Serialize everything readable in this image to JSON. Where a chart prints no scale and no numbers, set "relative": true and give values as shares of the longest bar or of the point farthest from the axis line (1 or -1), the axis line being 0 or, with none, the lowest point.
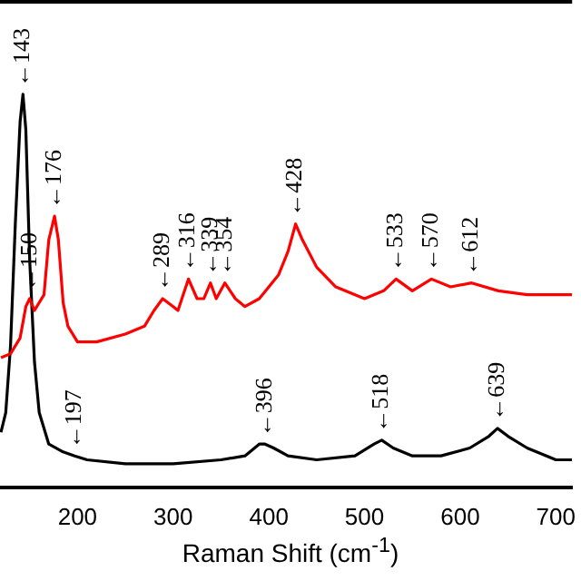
{
  "chart_data": {
    "type": "line",
    "xlabel": "Raman Shift (cm$^{-1}$)",
    "relative": true,
    "xlim": [
      119,
      717
    ],
    "xticks": [
      200,
      300,
      400,
      500,
      600,
      700
    ],
    "grid": false,
    "legend": false,
    "marker": "none",
    "line_style": "solid",
    "series": [
      {
        "color": "#ff0000",
        "x": [
          120,
          130,
          140,
          146,
          150,
          155,
          165,
          170,
          176,
          180,
          185,
          190,
          200,
          220,
          250,
          270,
          280,
          289,
          300,
          305,
          316,
          325,
          332,
          339,
          345,
          354,
          365,
          375,
          390,
          410,
          420,
          428,
          435,
          450,
          470,
          500,
          520,
          533,
          550,
          570,
          590,
          612,
          640,
          670,
          717
        ],
        "values": [
          0.33,
          0.34,
          0.38,
          0.46,
          0.48,
          0.45,
          0.49,
          0.63,
          0.69,
          0.63,
          0.47,
          0.41,
          0.37,
          0.37,
          0.39,
          0.41,
          0.45,
          0.48,
          0.46,
          0.45,
          0.53,
          0.48,
          0.48,
          0.52,
          0.48,
          0.52,
          0.48,
          0.46,
          0.48,
          0.54,
          0.6,
          0.67,
          0.63,
          0.56,
          0.51,
          0.48,
          0.5,
          0.53,
          0.5,
          0.53,
          0.51,
          0.52,
          0.5,
          0.49,
          0.49
        ]
      },
      {
        "color": "#000000",
        "x": [
          120,
          125,
          130,
          135,
          140,
          143,
          146,
          150,
          155,
          160,
          170,
          185,
          197,
          210,
          250,
          300,
          350,
          375,
          390,
          396,
          405,
          420,
          450,
          490,
          510,
          518,
          530,
          550,
          580,
          610,
          630,
          639,
          650,
          670,
          700,
          717
        ],
        "values": [
          0.14,
          0.19,
          0.36,
          0.67,
          0.93,
          1,
          0.91,
          0.58,
          0.32,
          0.19,
          0.11,
          0.09,
          0.08,
          0.07,
          0.06,
          0.06,
          0.07,
          0.08,
          0.11,
          0.11,
          0.1,
          0.08,
          0.07,
          0.08,
          0.11,
          0.12,
          0.1,
          0.08,
          0.08,
          0.1,
          0.13,
          0.15,
          0.13,
          0.1,
          0.07,
          0.07
        ]
      }
    ],
    "annotations": [
      {
        "text": "←143",
        "x": 143,
        "y": 1
      },
      {
        "text": "←150",
        "x": 150,
        "y": 0.48
      },
      {
        "text": "←176",
        "x": 176,
        "y": 0.69
      },
      {
        "text": "←197",
        "x": 197,
        "y": 0.08
      },
      {
        "text": "←289",
        "x": 289,
        "y": 0.48
      },
      {
        "text": "←316",
        "x": 316,
        "y": 0.53
      },
      {
        "text": "←339",
        "x": 339,
        "y": 0.52
      },
      {
        "text": "←354",
        "x": 354,
        "y": 0.52
      },
      {
        "text": "←428",
        "x": 428,
        "y": 0.67
      },
      {
        "text": "←533",
        "x": 533,
        "y": 0.53
      },
      {
        "text": "←570",
        "x": 570,
        "y": 0.53
      },
      {
        "text": "←612",
        "x": 612,
        "y": 0.52
      },
      {
        "text": "←396",
        "x": 396,
        "y": 0.11
      },
      {
        "text": "←518",
        "x": 518,
        "y": 0.12
      },
      {
        "text": "←639",
        "x": 639,
        "y": 0.15
      }
    ]
  }
}
